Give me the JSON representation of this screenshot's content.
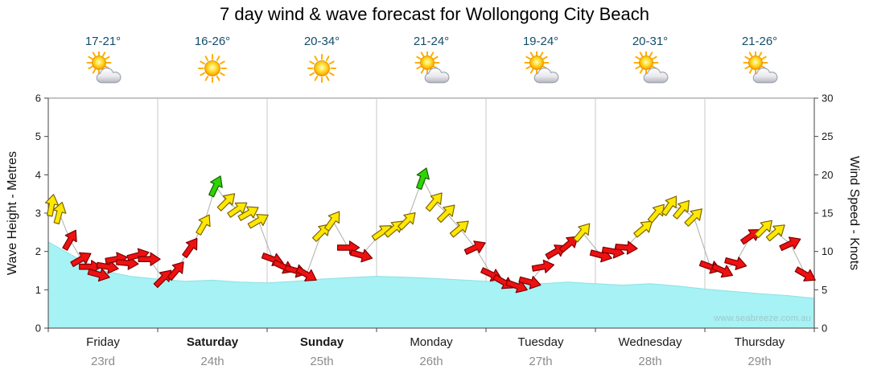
{
  "title": "7 day wind & wave forecast for Wollongong City Beach",
  "watermark": "www.seabreeze.com.au",
  "axes": {
    "left_label": "Wave Height - Metres",
    "right_label": "Wind Speed - Knots",
    "left_ticks": [
      0,
      1,
      2,
      3,
      4,
      5,
      6
    ],
    "right_ticks": [
      0,
      5,
      10,
      15,
      20,
      25,
      30
    ]
  },
  "colors": {
    "wave_fill": "#a6f2f4",
    "arrow_red": "#ee1111",
    "arrow_yellow": "#ffe800",
    "arrow_green": "#2ed500",
    "grid": "#c9c9c9",
    "border": "#8a8a8a",
    "axis": "#444444",
    "temp_text": "#134d6b",
    "date_text": "#8c8c8c",
    "connector": "#adadad"
  },
  "days": [
    {
      "name": "Friday",
      "date": "23rd",
      "temp": "17-21°",
      "icon": "sun-cloud",
      "bold": false
    },
    {
      "name": "Saturday",
      "date": "24th",
      "temp": "16-26°",
      "icon": "sun",
      "bold": true
    },
    {
      "name": "Sunday",
      "date": "25th",
      "temp": "20-34°",
      "icon": "sun",
      "bold": true
    },
    {
      "name": "Monday",
      "date": "26th",
      "temp": "21-24°",
      "icon": "sun-cloud",
      "bold": false
    },
    {
      "name": "Tuesday",
      "date": "27th",
      "temp": "19-24°",
      "icon": "sun-cloud",
      "bold": false
    },
    {
      "name": "Wednesday",
      "date": "28th",
      "temp": "20-31°",
      "icon": "sun-cloud",
      "bold": false
    },
    {
      "name": "Thursday",
      "date": "29th",
      "temp": "21-26°",
      "icon": "sun-cloud",
      "bold": false
    }
  ],
  "chart_data": {
    "type": "area",
    "title": "7 day wind & wave forecast for Wollongong City Beach",
    "categories": [
      "Friday 23rd",
      "Saturday 24th",
      "Sunday 25th",
      "Monday 26th",
      "Tuesday 27th",
      "Wednesday 28th",
      "Thursday 29th"
    ],
    "wave_height_m": {
      "ylabel": "Wave Height - Metres",
      "ylim": [
        0,
        6
      ],
      "samples_per_day": 4,
      "values": [
        2.25,
        1.85,
        1.5,
        1.35,
        1.28,
        1.22,
        1.25,
        1.2,
        1.18,
        1.22,
        1.28,
        1.32,
        1.35,
        1.33,
        1.3,
        1.26,
        1.22,
        1.18,
        1.16,
        1.2,
        1.16,
        1.12,
        1.16,
        1.1,
        1.02,
        0.96,
        0.9,
        0.85,
        0.78
      ]
    },
    "wind_knots": {
      "ylabel": "Wind Speed - Knots",
      "ylim": [
        0,
        30
      ],
      "arrows": [
        {
          "day": 0,
          "t": 0.03,
          "knots": 16,
          "color": "yellow",
          "dir_deg": -80
        },
        {
          "day": 0,
          "t": 0.1,
          "knots": 15,
          "color": "yellow",
          "dir_deg": -75
        },
        {
          "day": 0,
          "t": 0.2,
          "knots": 11.5,
          "color": "red",
          "dir_deg": -60
        },
        {
          "day": 0,
          "t": 0.3,
          "knots": 9,
          "color": "red",
          "dir_deg": -30
        },
        {
          "day": 0,
          "t": 0.38,
          "knots": 8,
          "color": "red",
          "dir_deg": 0
        },
        {
          "day": 0,
          "t": 0.46,
          "knots": 7,
          "color": "red",
          "dir_deg": 15
        },
        {
          "day": 0,
          "t": 0.54,
          "knots": 8,
          "color": "red",
          "dir_deg": 10
        },
        {
          "day": 0,
          "t": 0.62,
          "knots": 9,
          "color": "red",
          "dir_deg": -10
        },
        {
          "day": 0,
          "t": 0.72,
          "knots": 8.5,
          "color": "red",
          "dir_deg": 5
        },
        {
          "day": 0,
          "t": 0.82,
          "knots": 9.5,
          "color": "red",
          "dir_deg": -15
        },
        {
          "day": 0,
          "t": 0.92,
          "knots": 9,
          "color": "red",
          "dir_deg": 0
        },
        {
          "day": 1,
          "t": 0.05,
          "knots": 6.5,
          "color": "red",
          "dir_deg": -45
        },
        {
          "day": 1,
          "t": 0.17,
          "knots": 7.5,
          "color": "red",
          "dir_deg": -50
        },
        {
          "day": 1,
          "t": 0.3,
          "knots": 10.5,
          "color": "red",
          "dir_deg": -55
        },
        {
          "day": 1,
          "t": 0.42,
          "knots": 13.5,
          "color": "yellow",
          "dir_deg": -60
        },
        {
          "day": 1,
          "t": 0.53,
          "knots": 18.5,
          "color": "green",
          "dir_deg": -65
        },
        {
          "day": 1,
          "t": 0.63,
          "knots": 16.5,
          "color": "yellow",
          "dir_deg": -45
        },
        {
          "day": 1,
          "t": 0.73,
          "knots": 15.5,
          "color": "yellow",
          "dir_deg": -35
        },
        {
          "day": 1,
          "t": 0.83,
          "knots": 15,
          "color": "yellow",
          "dir_deg": -30
        },
        {
          "day": 1,
          "t": 0.92,
          "knots": 14,
          "color": "yellow",
          "dir_deg": -30
        },
        {
          "day": 2,
          "t": 0.05,
          "knots": 9,
          "color": "red",
          "dir_deg": 20
        },
        {
          "day": 2,
          "t": 0.15,
          "knots": 8,
          "color": "red",
          "dir_deg": 25
        },
        {
          "day": 2,
          "t": 0.26,
          "knots": 7.5,
          "color": "red",
          "dir_deg": 15
        },
        {
          "day": 2,
          "t": 0.36,
          "knots": 7,
          "color": "red",
          "dir_deg": 30
        },
        {
          "day": 2,
          "t": 0.5,
          "knots": 12.5,
          "color": "yellow",
          "dir_deg": -45
        },
        {
          "day": 2,
          "t": 0.6,
          "knots": 14,
          "color": "yellow",
          "dir_deg": -55
        },
        {
          "day": 2,
          "t": 0.74,
          "knots": 10.5,
          "color": "red",
          "dir_deg": 0
        },
        {
          "day": 2,
          "t": 0.86,
          "knots": 9.5,
          "color": "red",
          "dir_deg": 15
        },
        {
          "day": 3,
          "t": 0.05,
          "knots": 12.5,
          "color": "yellow",
          "dir_deg": -35
        },
        {
          "day": 3,
          "t": 0.16,
          "knots": 13,
          "color": "yellow",
          "dir_deg": -40
        },
        {
          "day": 3,
          "t": 0.28,
          "knots": 14,
          "color": "yellow",
          "dir_deg": -45
        },
        {
          "day": 3,
          "t": 0.42,
          "knots": 19.5,
          "color": "green",
          "dir_deg": -70
        },
        {
          "day": 3,
          "t": 0.53,
          "knots": 16.5,
          "color": "yellow",
          "dir_deg": -50
        },
        {
          "day": 3,
          "t": 0.64,
          "knots": 15,
          "color": "yellow",
          "dir_deg": -45
        },
        {
          "day": 3,
          "t": 0.76,
          "knots": 13,
          "color": "yellow",
          "dir_deg": -40
        },
        {
          "day": 3,
          "t": 0.9,
          "knots": 10.5,
          "color": "red",
          "dir_deg": -25
        },
        {
          "day": 4,
          "t": 0.05,
          "knots": 7,
          "color": "red",
          "dir_deg": 25
        },
        {
          "day": 4,
          "t": 0.16,
          "knots": 6,
          "color": "red",
          "dir_deg": 30
        },
        {
          "day": 4,
          "t": 0.28,
          "knots": 5.5,
          "color": "red",
          "dir_deg": 20
        },
        {
          "day": 4,
          "t": 0.4,
          "knots": 6,
          "color": "red",
          "dir_deg": 15
        },
        {
          "day": 4,
          "t": 0.52,
          "knots": 8,
          "color": "red",
          "dir_deg": -10
        },
        {
          "day": 4,
          "t": 0.64,
          "knots": 10,
          "color": "red",
          "dir_deg": -30
        },
        {
          "day": 4,
          "t": 0.76,
          "knots": 11,
          "color": "red",
          "dir_deg": -40
        },
        {
          "day": 4,
          "t": 0.88,
          "knots": 12.5,
          "color": "yellow",
          "dir_deg": -50
        },
        {
          "day": 5,
          "t": 0.05,
          "knots": 9.5,
          "color": "red",
          "dir_deg": 15
        },
        {
          "day": 5,
          "t": 0.16,
          "knots": 10,
          "color": "red",
          "dir_deg": 10
        },
        {
          "day": 5,
          "t": 0.28,
          "knots": 10.5,
          "color": "red",
          "dir_deg": 5
        },
        {
          "day": 5,
          "t": 0.44,
          "knots": 13,
          "color": "yellow",
          "dir_deg": -40
        },
        {
          "day": 5,
          "t": 0.56,
          "knots": 15,
          "color": "yellow",
          "dir_deg": -50
        },
        {
          "day": 5,
          "t": 0.68,
          "knots": 16,
          "color": "yellow",
          "dir_deg": -55
        },
        {
          "day": 5,
          "t": 0.79,
          "knots": 15.5,
          "color": "yellow",
          "dir_deg": -50
        },
        {
          "day": 5,
          "t": 0.9,
          "knots": 14.5,
          "color": "yellow",
          "dir_deg": -45
        },
        {
          "day": 6,
          "t": 0.05,
          "knots": 8,
          "color": "red",
          "dir_deg": 20
        },
        {
          "day": 6,
          "t": 0.16,
          "knots": 7.5,
          "color": "red",
          "dir_deg": 25
        },
        {
          "day": 6,
          "t": 0.28,
          "knots": 8.5,
          "color": "red",
          "dir_deg": 15
        },
        {
          "day": 6,
          "t": 0.42,
          "knots": 12,
          "color": "red",
          "dir_deg": -35
        },
        {
          "day": 6,
          "t": 0.54,
          "knots": 13,
          "color": "yellow",
          "dir_deg": -45
        },
        {
          "day": 6,
          "t": 0.65,
          "knots": 12.5,
          "color": "yellow",
          "dir_deg": -40
        },
        {
          "day": 6,
          "t": 0.78,
          "knots": 11,
          "color": "red",
          "dir_deg": -25
        },
        {
          "day": 6,
          "t": 0.92,
          "knots": 7,
          "color": "red",
          "dir_deg": 30
        }
      ]
    }
  }
}
